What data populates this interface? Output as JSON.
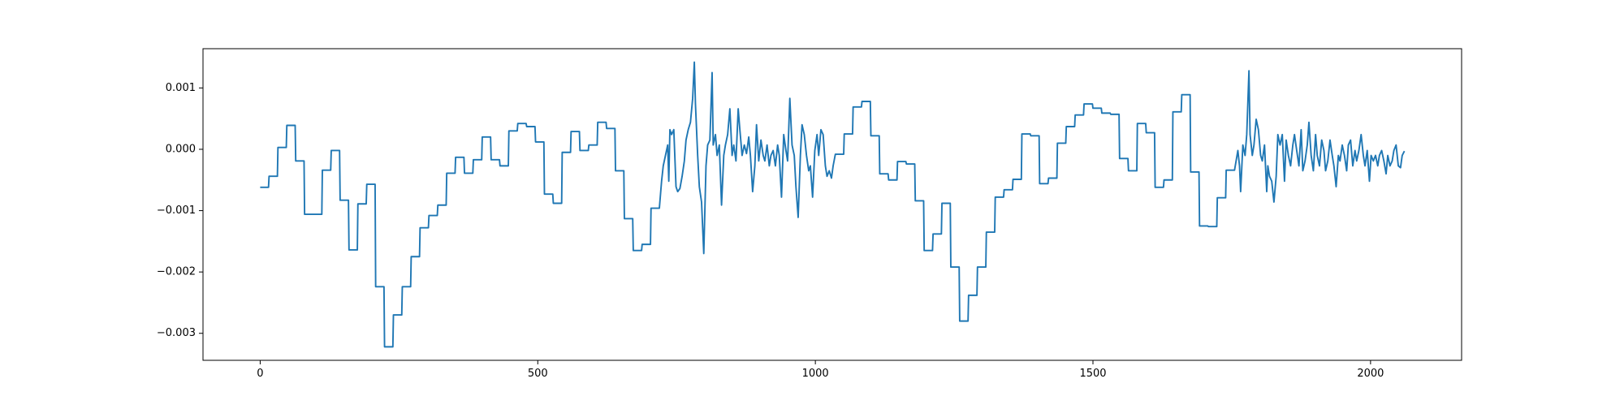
{
  "chart_data": {
    "type": "line",
    "color": "#1f77b4",
    "xlim": [
      -103,
      2164
    ],
    "ylim": [
      -0.00344,
      0.00164
    ],
    "xticks": [
      0,
      500,
      1000,
      1500,
      2000
    ],
    "yticks": [
      {
        "value": -0.003,
        "label": "−0.003"
      },
      {
        "value": -0.002,
        "label": "−0.002"
      },
      {
        "value": -0.001,
        "label": "−0.001"
      },
      {
        "value": 0,
        "label": "0.000"
      },
      0.001
    ],
    "x": [
      0,
      15,
      16,
      31,
      32,
      47,
      48,
      63,
      64,
      79,
      80,
      95,
      96,
      111,
      112,
      127,
      128,
      143,
      144,
      159,
      160,
      175,
      176,
      191,
      192,
      207,
      208,
      223,
      224,
      239,
      240,
      255,
      256,
      271,
      272,
      287,
      288,
      303,
      304,
      319,
      320,
      335,
      336,
      351,
      352,
      367,
      368,
      383,
      384,
      399,
      400,
      415,
      416,
      431,
      432,
      447,
      448,
      463,
      464,
      479,
      480,
      495,
      496,
      511,
      512,
      527,
      528,
      543,
      544,
      559,
      560,
      575,
      576,
      591,
      592,
      607,
      608,
      623,
      624,
      639,
      640,
      655,
      656,
      671,
      672,
      687,
      688,
      703,
      704,
      719,
      723,
      726,
      730,
      734,
      736,
      738,
      741,
      745,
      749,
      752,
      756,
      760,
      764,
      767,
      771,
      775,
      779,
      782,
      784,
      788,
      791,
      795,
      799,
      803,
      806,
      810,
      814,
      816,
      820,
      823,
      827,
      831,
      835,
      838,
      842,
      846,
      850,
      853,
      857,
      861,
      864,
      868,
      872,
      876,
      880,
      883,
      887,
      891,
      894,
      898,
      902,
      906,
      909,
      913,
      917,
      920,
      924,
      928,
      932,
      935,
      939,
      943,
      947,
      950,
      954,
      958,
      962,
      965,
      969,
      973,
      976,
      980,
      984,
      988,
      991,
      995,
      999,
      1003,
      1006,
      1010,
      1014,
      1018,
      1021,
      1025,
      1029,
      1032,
      1036,
      1051,
      1052,
      1067,
      1068,
      1083,
      1084,
      1099,
      1100,
      1115,
      1116,
      1131,
      1132,
      1147,
      1148,
      1163,
      1164,
      1179,
      1180,
      1195,
      1196,
      1211,
      1212,
      1227,
      1228,
      1243,
      1244,
      1259,
      1260,
      1275,
      1276,
      1291,
      1292,
      1307,
      1308,
      1323,
      1324,
      1339,
      1340,
      1355,
      1356,
      1371,
      1372,
      1387,
      1388,
      1403,
      1404,
      1419,
      1420,
      1435,
      1436,
      1451,
      1452,
      1467,
      1468,
      1483,
      1484,
      1499,
      1500,
      1515,
      1516,
      1531,
      1532,
      1547,
      1548,
      1563,
      1564,
      1579,
      1580,
      1595,
      1596,
      1611,
      1612,
      1627,
      1628,
      1643,
      1644,
      1659,
      1660,
      1675,
      1676,
      1691,
      1692,
      1707,
      1708,
      1723,
      1724,
      1739,
      1740,
      1755,
      1761,
      1764,
      1766,
      1770,
      1774,
      1777,
      1781,
      1783,
      1787,
      1790,
      1794,
      1798,
      1802,
      1805,
      1809,
      1813,
      1815,
      1818,
      1822,
      1826,
      1830,
      1833,
      1837,
      1841,
      1845,
      1848,
      1852,
      1856,
      1860,
      1863,
      1867,
      1871,
      1875,
      1878,
      1882,
      1886,
      1889,
      1893,
      1897,
      1901,
      1904,
      1908,
      1912,
      1916,
      1919,
      1923,
      1927,
      1931,
      1934,
      1938,
      1942,
      1945,
      1949,
      1953,
      1957,
      1960,
      1964,
      1968,
      1972,
      1975,
      1979,
      1983,
      1987,
      1990,
      1994,
      1998,
      2001,
      2005,
      2009,
      2013,
      2016,
      2020,
      2024,
      2028,
      2031,
      2035,
      2039,
      2042,
      2046,
      2050,
      2054,
      2057,
      2061
    ],
    "values": [
      -0.00062,
      -0.00062,
      -0.00044,
      -0.00044,
      3e-05,
      3e-05,
      0.00039,
      0.00039,
      -0.00019,
      -0.00019,
      -0.00106,
      -0.00106,
      -0.00106,
      -0.00106,
      -0.00034,
      -0.00034,
      -2e-05,
      -2e-05,
      -0.00083,
      -0.00083,
      -0.00164,
      -0.00164,
      -0.00089,
      -0.00089,
      -0.00057,
      -0.00057,
      -0.00224,
      -0.00224,
      -0.00322,
      -0.00322,
      -0.0027,
      -0.0027,
      -0.00224,
      -0.00224,
      -0.00175,
      -0.00175,
      -0.00128,
      -0.00128,
      -0.00108,
      -0.00108,
      -0.00091,
      -0.00091,
      -0.00039,
      -0.00039,
      -0.00013,
      -0.00013,
      -0.00039,
      -0.00039,
      -0.00017,
      -0.00017,
      0.0002,
      0.0002,
      -0.00017,
      -0.00017,
      -0.00027,
      -0.00027,
      0.0003,
      0.0003,
      0.00042,
      0.00042,
      0.00037,
      0.00037,
      0.00012,
      0.00012,
      -0.00073,
      -0.00073,
      -0.00088,
      -0.00088,
      -5e-05,
      -5e-05,
      0.00029,
      0.00029,
      -2e-05,
      -2e-05,
      7e-05,
      7e-05,
      0.00044,
      0.00044,
      0.00034,
      0.00034,
      -0.00035,
      -0.00035,
      -0.00113,
      -0.00113,
      -0.00165,
      -0.00165,
      -0.00155,
      -0.00155,
      -0.00096,
      -0.00096,
      -0.00052,
      -0.00027,
      -0.0001,
      7e-05,
      -0.00052,
      0.00032,
      0.00024,
      0.00032,
      -0.00061,
      -0.00069,
      -0.00064,
      -0.00044,
      -0.00019,
      0.00015,
      0.00032,
      0.00044,
      0.00083,
      0.00142,
      0.00074,
      -0.0001,
      -0.00061,
      -0.00086,
      -0.0017,
      -0.00027,
      7e-05,
      0.00015,
      0.00125,
      7e-05,
      0.00024,
      -0.0001,
      7e-05,
      -0.00091,
      -0.0001,
      7e-05,
      0.00024,
      0.00066,
      -0.0001,
      7e-05,
      -0.00019,
      0.00066,
      0.00032,
      -0.0001,
      7e-05,
      -7e-05,
      0.0002,
      -0.0001,
      -0.00069,
      -0.00027,
      0.0004,
      -0.00019,
      0.00015,
      -0.0001,
      -0.00019,
      7e-05,
      -0.00027,
      -0.0001,
      -2e-05,
      -0.00027,
      7e-05,
      -0.0001,
      -0.00078,
      0.00024,
      -2e-05,
      -0.00019,
      0.00083,
      7e-05,
      -0.0001,
      -0.00061,
      -0.00111,
      -0.0001,
      0.0004,
      0.00024,
      -0.0001,
      -0.00035,
      -0.00027,
      -0.00078,
      -2e-05,
      0.00024,
      -0.0001,
      0.00032,
      0.00024,
      -0.00027,
      -0.00044,
      -0.00035,
      -0.00047,
      -0.00027,
      -8e-05,
      -8e-05,
      0.00025,
      0.00025,
      0.00069,
      0.00069,
      0.00078,
      0.00078,
      0.00022,
      0.00022,
      -0.0004,
      -0.0004,
      -0.0005,
      -0.0005,
      -0.0002,
      -0.0002,
      -0.00024,
      -0.00024,
      -0.00084,
      -0.00084,
      -0.00165,
      -0.00165,
      -0.00138,
      -0.00138,
      -0.00088,
      -0.00088,
      -0.00192,
      -0.00192,
      -0.0028,
      -0.0028,
      -0.00238,
      -0.00238,
      -0.00192,
      -0.00192,
      -0.00135,
      -0.00135,
      -0.00078,
      -0.00078,
      -0.00066,
      -0.00066,
      -0.00049,
      -0.00049,
      0.00025,
      0.00025,
      0.00022,
      0.00022,
      -0.00056,
      -0.00056,
      -0.00047,
      -0.00047,
      0.0001,
      0.0001,
      0.00037,
      0.00037,
      0.00056,
      0.00056,
      0.00074,
      0.00074,
      0.00067,
      0.00067,
      0.00059,
      0.00059,
      0.00057,
      0.00057,
      -0.00015,
      -0.00015,
      -0.00035,
      -0.00035,
      0.00042,
      0.00042,
      0.00027,
      0.00027,
      -0.00062,
      -0.00062,
      -0.0005,
      -0.0005,
      0.00061,
      0.00061,
      0.00089,
      0.00089,
      -0.00037,
      -0.00037,
      -0.00125,
      -0.00125,
      -0.00126,
      -0.00126,
      -0.00079,
      -0.00079,
      -0.00034,
      -0.00034,
      -2e-05,
      -0.00027,
      -0.00069,
      7e-05,
      -0.0001,
      0.00024,
      0.00128,
      0.00024,
      -0.0001,
      7e-05,
      0.00049,
      0.00032,
      -0.0001,
      -0.00019,
      7e-05,
      -0.00069,
      -0.00027,
      -0.00044,
      -0.00052,
      -0.00086,
      -0.00044,
      0.00024,
      7e-05,
      0.00024,
      -0.00052,
      0.00015,
      -0.0001,
      -0.00027,
      7e-05,
      0.00024,
      -2e-05,
      -0.00027,
      0.00032,
      -0.00035,
      -0.00019,
      7e-05,
      0.00044,
      -0.0001,
      -0.00035,
      0.00024,
      -0.0001,
      -0.00027,
      0.00015,
      -2e-05,
      -0.00035,
      -0.00019,
      0.00015,
      -0.0001,
      -0.00027,
      -0.00061,
      -0.0001,
      -0.00019,
      7e-05,
      -0.0001,
      -0.00035,
      7e-05,
      0.00015,
      -0.00027,
      -2e-05,
      -0.00019,
      -2e-05,
      0.00024,
      -0.0001,
      -0.00027,
      -2e-05,
      -0.00052,
      -0.0001,
      -0.00019,
      -0.0001,
      -0.00027,
      -0.0001,
      -2e-05,
      -0.00019,
      -0.0004,
      -0.0001,
      -0.00027,
      -0.00019,
      -2e-05,
      7e-05,
      -0.00027,
      -0.0003,
      -0.0001,
      -3e-05
    ]
  }
}
